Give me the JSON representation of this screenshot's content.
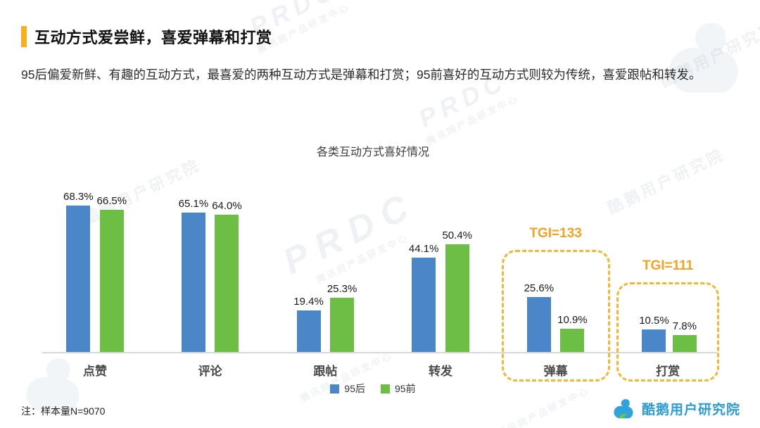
{
  "header": {
    "title": "互动方式爱尝鲜，喜爱弹幕和打赏",
    "subtitle": "95后偏爱新鲜、有趣的互动方式，最喜爱的两种互动方式是弹幕和打赏；95前喜好的互动方式则较为传统，喜爱跟帖和转发。"
  },
  "chart_data": {
    "type": "bar",
    "title": "各类互动方式喜好情况",
    "categories": [
      "点赞",
      "评论",
      "跟帖",
      "转发",
      "弹幕",
      "打赏"
    ],
    "series": [
      {
        "name": "95后",
        "color": "#4A86C8",
        "values": [
          68.3,
          65.1,
          19.4,
          44.1,
          25.6,
          10.5
        ]
      },
      {
        "name": "95前",
        "color": "#6CBE45",
        "values": [
          66.5,
          64.0,
          25.3,
          50.4,
          10.9,
          7.8
        ]
      }
    ],
    "value_suffix": "%",
    "ylim": [
      0,
      75
    ],
    "grid": false,
    "legend_position": "bottom",
    "annotations": [
      {
        "category": "弹幕",
        "label": "TGI=133"
      },
      {
        "category": "打赏",
        "label": "TGI=111"
      }
    ],
    "highlight_color": "#F8B62D"
  },
  "theme": {
    "accent": "#F9B01E",
    "tgi_color": "#F9A11B",
    "brand_color": "#2E9CD6"
  },
  "footer": {
    "note": "注：样本量N=9070",
    "brand": "酷鹅用户研究院"
  },
  "watermark": {
    "prdc": "PRDC",
    "dept": "腾讯网产品研发中心",
    "brand": "酷鹅用户研究院"
  }
}
